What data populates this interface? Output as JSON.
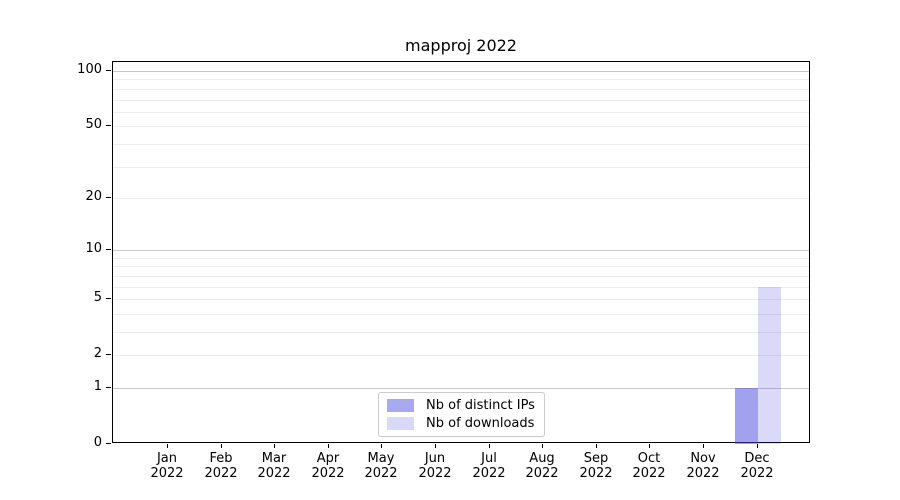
{
  "title": "mapproj 2022",
  "chart_data": {
    "type": "bar",
    "title": "mapproj 2022",
    "categories": [
      "Jan 2022",
      "Feb 2022",
      "Mar 2022",
      "Apr 2022",
      "May 2022",
      "Jun 2022",
      "Jul 2022",
      "Aug 2022",
      "Sep 2022",
      "Oct 2022",
      "Nov 2022",
      "Dec 2022"
    ],
    "series": [
      {
        "name": "Nb of distinct IPs",
        "base_color": "#4444dd",
        "alpha": 0.5,
        "display_color": "#a9a9f1",
        "values": [
          0,
          0,
          0,
          0,
          0,
          0,
          0,
          0,
          0,
          0,
          0,
          1
        ]
      },
      {
        "name": "Nb of downloads",
        "base_color": "#4444dd",
        "alpha": 0.2,
        "display_color": "#d9d9f7",
        "values": [
          0,
          0,
          0,
          0,
          0,
          0,
          0,
          0,
          0,
          0,
          0,
          6
        ]
      }
    ],
    "xlabel": "",
    "ylabel": "",
    "yaxis": {
      "scale": "log1p",
      "tick_values": [
        0,
        1,
        2,
        5,
        10,
        20,
        50,
        100
      ],
      "tick_labels": [
        "0",
        "1",
        "2",
        "5",
        "10",
        "20",
        "50",
        "100"
      ],
      "major_gridlines": [
        1,
        10,
        100
      ],
      "minor_gridlines": [
        2,
        3,
        4,
        5,
        6,
        7,
        8,
        9,
        20,
        30,
        40,
        50,
        60,
        70,
        80,
        90
      ],
      "ylim": [
        0,
        112
      ]
    },
    "grid": "horizontal",
    "legend_position": "lower center inside"
  },
  "legend": {
    "items": [
      {
        "label": "Nb of distinct IPs",
        "color": "#a9a9f1"
      },
      {
        "label": "Nb of downloads",
        "color": "#d9d9f7"
      }
    ]
  },
  "colors": {
    "background": "#ffffff",
    "spine": "#000000",
    "grid_major": "#c9c9c9",
    "grid_minor": "#ededed",
    "text": "#000000",
    "legend_border": "#cccccc",
    "bar_base": "#4444dd"
  }
}
